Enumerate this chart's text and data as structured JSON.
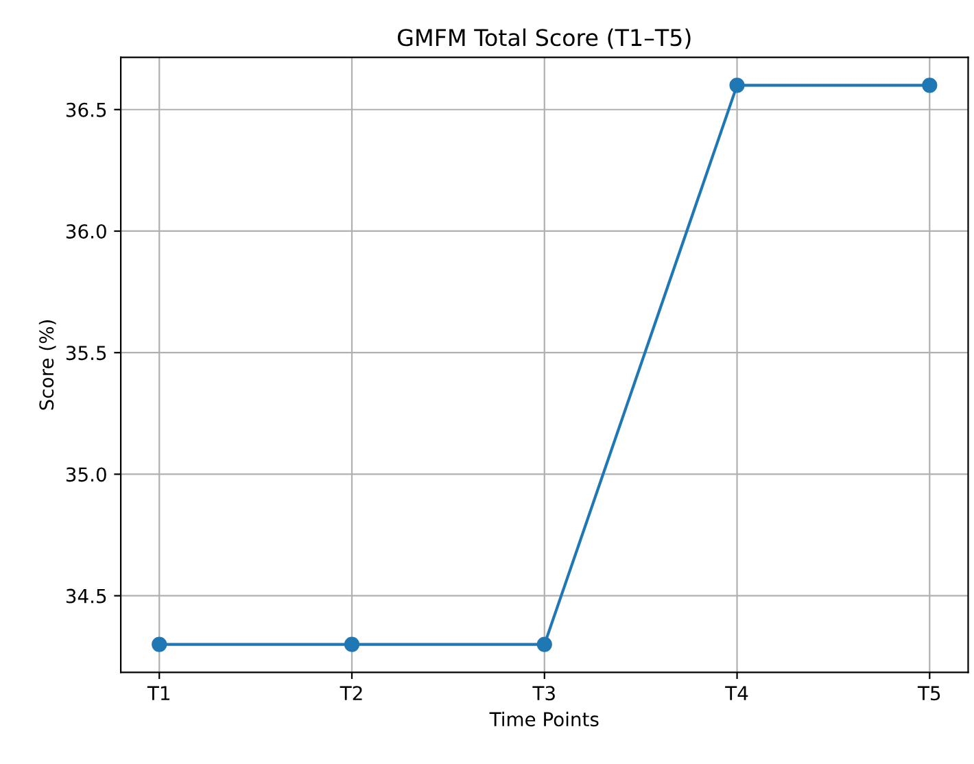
{
  "chart_data": {
    "type": "line",
    "title": "GMFM Total Score (T1–T5)",
    "xlabel": "Time Points",
    "ylabel": "Score (%)",
    "categories": [
      "T1",
      "T2",
      "T3",
      "T4",
      "T5"
    ],
    "series": [
      {
        "color": "#1f77b4",
        "values": [
          34.3,
          34.3,
          34.3,
          36.6,
          36.6
        ]
      }
    ],
    "ylim": [
      34.185,
      36.715
    ],
    "yticks": [
      {
        "value": 34.5,
        "label": "34.5"
      },
      {
        "value": 35.0,
        "label": "35.0"
      },
      {
        "value": 35.5,
        "label": "35.5"
      },
      {
        "value": 36.0,
        "label": "36.0"
      },
      {
        "value": 36.5,
        "label": "36.5"
      }
    ],
    "grid": true,
    "marker": "circle",
    "line_style": "solid"
  }
}
